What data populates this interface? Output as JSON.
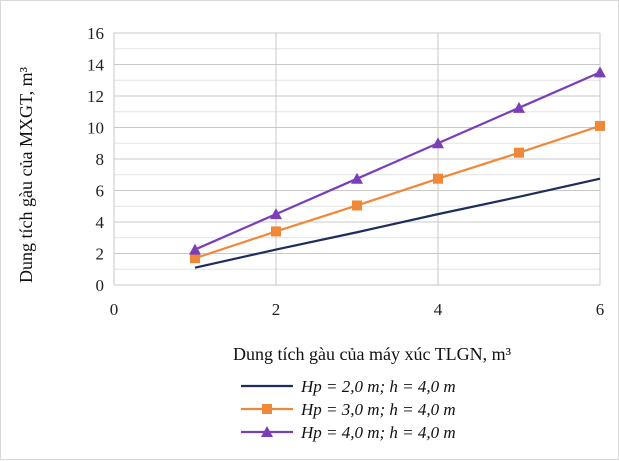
{
  "chart_data": {
    "type": "line",
    "xlabel": "Dung tích gàu của máy xúc TLGN, m³",
    "ylabel": "Dung tích gàu của MXGT, m³",
    "xlim": [
      0,
      6
    ],
    "ylim": [
      0,
      16
    ],
    "x_ticks": [
      "0",
      "2",
      "4",
      "6"
    ],
    "y_ticks": [
      "0",
      "2",
      "4",
      "6",
      "8",
      "10",
      "12",
      "14",
      "16"
    ],
    "grid": true,
    "legend_position": "bottom",
    "series": [
      {
        "name": "Hp = 2,0 m; h = 4,0 m",
        "color": "#1f2d5c",
        "marker": "none",
        "x": [
          1,
          2,
          3,
          4,
          5,
          6
        ],
        "y": [
          1.1,
          2.25,
          3.35,
          4.5,
          5.6,
          6.75
        ]
      },
      {
        "name": "Hp = 3,0 m; h = 4,0 m",
        "color": "#f0883a",
        "marker": "square",
        "x": [
          1,
          2,
          3,
          4,
          5,
          6
        ],
        "y": [
          1.7,
          3.4,
          5.05,
          6.75,
          8.4,
          10.1
        ]
      },
      {
        "name": "Hp = 4,0 m; h = 4,0 m",
        "color": "#7a3fb8",
        "marker": "triangle",
        "x": [
          1,
          2,
          3,
          4,
          5,
          6
        ],
        "y": [
          2.25,
          4.5,
          6.75,
          9.0,
          11.25,
          13.5
        ]
      }
    ]
  }
}
